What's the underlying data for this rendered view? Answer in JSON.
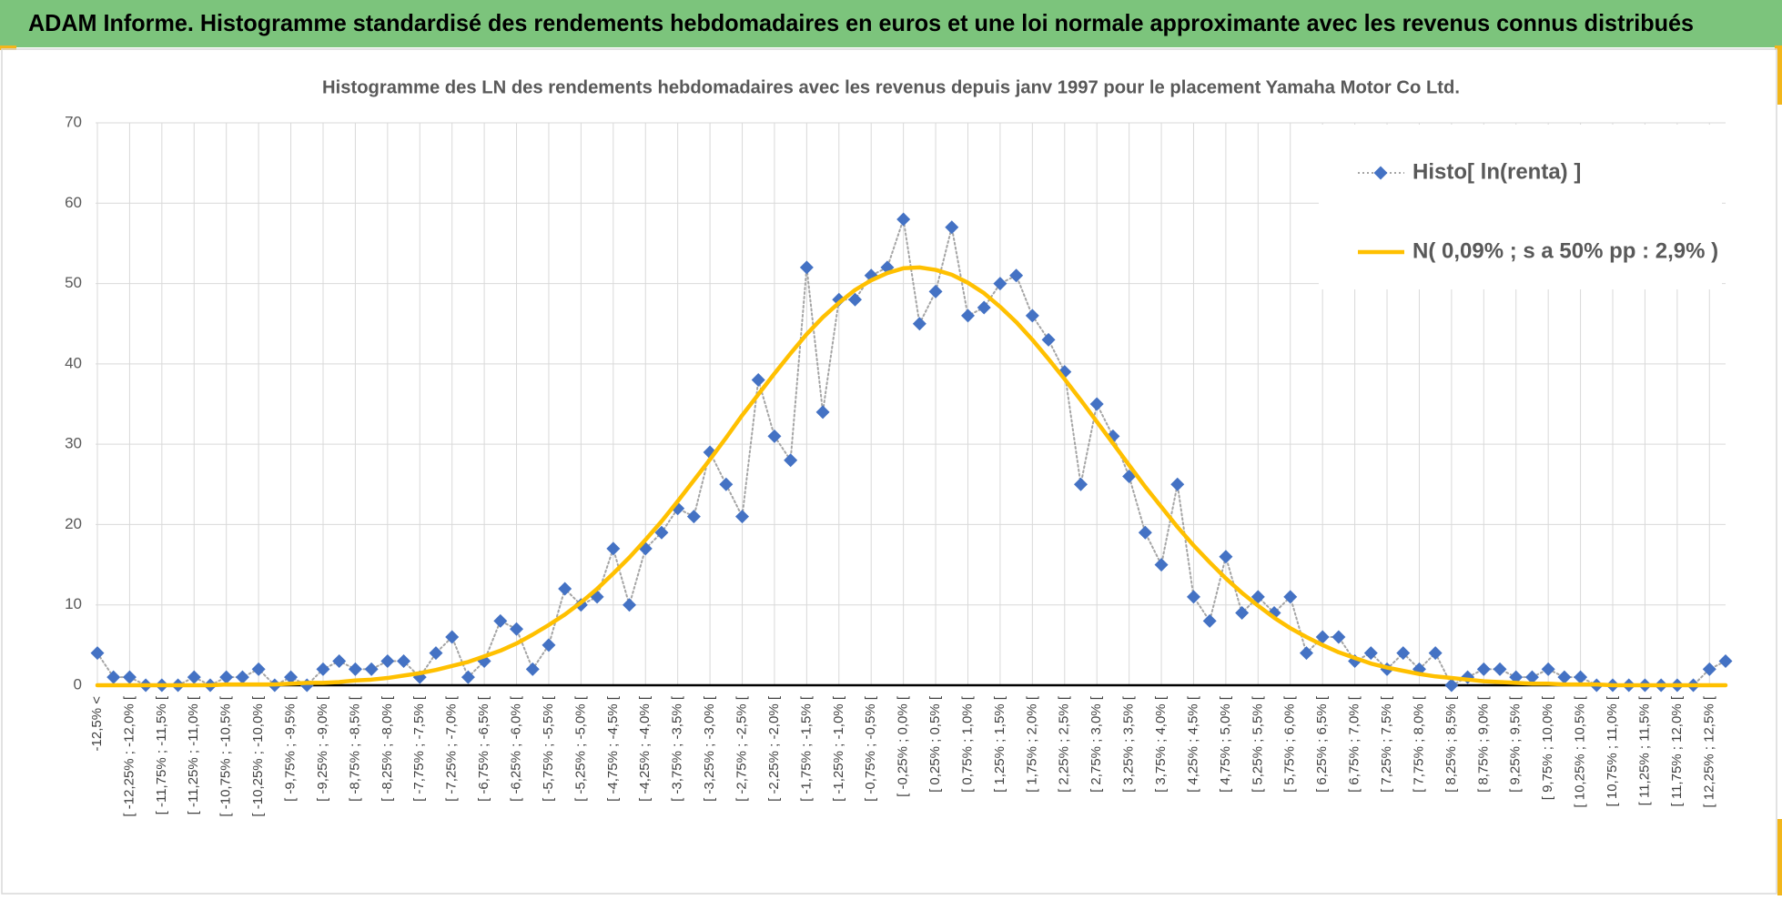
{
  "header": {
    "title": "ADAM Informe. Histogramme standardisé des rendements hebdomadaires en euros et une loi normale approximante avec les revenus connus distribués"
  },
  "chart_data": {
    "type": "line",
    "title": "Histogramme des LN des rendements hebdomadaires avec les revenus depuis janv 1997 pour le placement Yamaha Motor Co Ltd.",
    "categories": [
      "-12,5% <",
      null,
      "[ -12,25% ; -12,0% [",
      null,
      "[ -11,75% ; -11,5% [",
      null,
      "[ -11,25% ; -11,0% [",
      null,
      "[ -10,75% ; -10,5% [",
      null,
      "[ -10,25% ; -10,0% [",
      null,
      "[ -9,75% ; -9,5% [",
      null,
      "[ -9,25% ; -9,0% [",
      null,
      "[ -8,75% ; -8,5% [",
      null,
      "[ -8,25% ; -8,0% [",
      null,
      "[ -7,75% ; -7,5% [",
      null,
      "[ -7,25% ; -7,0% [",
      null,
      "[ -6,75% ; -6,5% [",
      null,
      "[ -6,25% ; -6,0% [",
      null,
      "[ -5,75% ; -5,5% [",
      null,
      "[ -5,25% ; -5,0% [",
      null,
      "[ -4,75% ; -4,5% [",
      null,
      "[ -4,25% ; -4,0% [",
      null,
      "[ -3,75% ; -3,5% [",
      null,
      "[ -3,25% ; -3,0% [",
      null,
      "[ -2,75% ; -2,5% [",
      null,
      "[ -2,25% ; -2,0% [",
      null,
      "[ -1,75% ; -1,5% [",
      null,
      "[ -1,25% ; -1,0% [",
      null,
      "[ -0,75% ; -0,5% [",
      null,
      "[ -0,25% ; 0,0% [",
      null,
      "[ 0,25% ; 0,5% [",
      null,
      "[ 0,75% ; 1,0% [",
      null,
      "[ 1,25% ; 1,5% [",
      null,
      "[ 1,75% ; 2,0% [",
      null,
      "[ 2,25% ; 2,5% [",
      null,
      "[ 2,75% ; 3,0% [",
      null,
      "[ 3,25% ; 3,5% [",
      null,
      "[ 3,75% ; 4,0% [",
      null,
      "[ 4,25% ; 4,5% [",
      null,
      "[ 4,75% ; 5,0% [",
      null,
      "[ 5,25% ; 5,5% [",
      null,
      "[ 5,75% ; 6,0% [",
      null,
      "[ 6,25% ; 6,5% [",
      null,
      "[ 6,75% ; 7,0% [",
      null,
      "[ 7,25% ; 7,5% [",
      null,
      "[ 7,75% ; 8,0% [",
      null,
      "[ 8,25% ; 8,5% [",
      null,
      "[ 8,75% ; 9,0% [",
      null,
      "[ 9,25% ; 9,5% [",
      null,
      "[ 9,75% ; 10,0% [",
      null,
      "[ 10,25% ; 10,5% [",
      null,
      "[ 10,75% ; 11,0% [",
      null,
      "[ 11,25% ; 11,5% [",
      null,
      "[ 11,75% ; 12,0% [",
      null,
      "[ 12,25% ; 12,5% [",
      null
    ],
    "series": [
      {
        "name": "Histo[ ln(renta) ]",
        "color": "#4472c4",
        "line_color": "#a5a5a5",
        "line_style": "dotted",
        "marker": "diamond",
        "values": [
          4,
          1,
          1,
          0,
          0,
          0,
          1,
          0,
          1,
          1,
          2,
          0,
          1,
          0,
          2,
          3,
          2,
          2,
          3,
          3,
          1,
          4,
          6,
          1,
          3,
          8,
          7,
          2,
          5,
          12,
          10,
          11,
          17,
          10,
          17,
          19,
          22,
          21,
          29,
          25,
          21,
          38,
          31,
          28,
          52,
          34,
          48,
          48,
          51,
          52,
          58,
          45,
          49,
          57,
          46,
          47,
          50,
          51,
          46,
          43,
          39,
          25,
          35,
          31,
          26,
          19,
          15,
          25,
          11,
          8,
          16,
          9,
          11,
          9,
          11,
          4,
          6,
          6,
          3,
          4,
          2,
          4,
          2,
          4,
          0,
          1,
          2,
          2,
          1,
          1,
          2,
          1,
          1,
          0,
          0,
          0,
          0,
          0,
          0,
          0,
          2,
          3
        ]
      },
      {
        "name": "N( 0,09% ; s a 50% pp : 2,9% )",
        "color": "#ffc000",
        "line_style": "solid",
        "values": [
          0,
          0,
          0,
          0,
          0,
          0,
          0,
          0,
          0.1,
          0.1,
          0.1,
          0.1,
          0.2,
          0.3,
          0.3,
          0.4,
          0.6,
          0.7,
          0.9,
          1.2,
          1.5,
          1.9,
          2.4,
          2.9,
          3.6,
          4.3,
          5.2,
          6.3,
          7.5,
          8.8,
          10.3,
          12.0,
          13.9,
          15.9,
          18.1,
          20.4,
          22.9,
          25.5,
          28.1,
          30.8,
          33.6,
          36.2,
          38.8,
          41.3,
          43.7,
          45.8,
          47.6,
          49.2,
          50.4,
          51.3,
          51.9,
          52.0,
          51.7,
          51.1,
          50.1,
          48.8,
          47.1,
          45.2,
          43.0,
          40.6,
          38.1,
          35.5,
          32.8,
          30.1,
          27.4,
          24.7,
          22.2,
          19.7,
          17.4,
          15.3,
          13.3,
          11.5,
          9.9,
          8.4,
          7.1,
          6.0,
          5.0,
          4.1,
          3.4,
          2.7,
          2.2,
          1.8,
          1.4,
          1.1,
          0.9,
          0.7,
          0.5,
          0.4,
          0.3,
          0.2,
          0.2,
          0.1,
          0.1,
          0.1,
          0,
          0,
          0,
          0,
          0,
          0,
          0,
          0
        ]
      }
    ],
    "ylim": [
      0,
      70
    ],
    "yticks": [
      0,
      10,
      20,
      30,
      40,
      50,
      60,
      70
    ],
    "grid": true,
    "legend": "top-right"
  }
}
